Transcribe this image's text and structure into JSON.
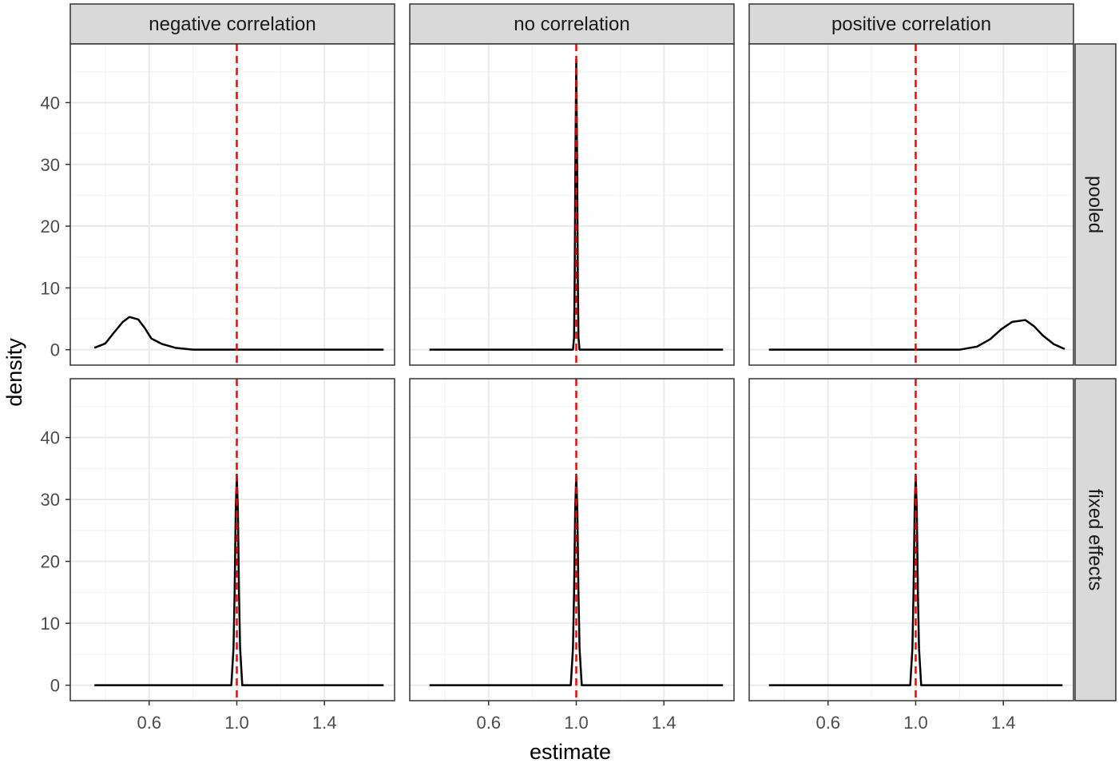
{
  "chart_data": {
    "type": "line",
    "chart_kind": "faceted density plot",
    "xlabel": "estimate",
    "ylabel": "density",
    "xlim": [
      0.24,
      1.72
    ],
    "ylim": [
      -2.5,
      49.5
    ],
    "x_ticks": [
      {
        "value": 0.6,
        "label": "0.6"
      },
      {
        "value": 1.0,
        "label": "1.0"
      },
      {
        "value": 1.4,
        "label": "1.4"
      }
    ],
    "y_ticks": [
      {
        "value": 0,
        "label": "0"
      },
      {
        "value": 10,
        "label": "10"
      },
      {
        "value": 20,
        "label": "20"
      },
      {
        "value": 30,
        "label": "30"
      },
      {
        "value": 40,
        "label": "40"
      }
    ],
    "grid": true,
    "reference_line": {
      "x": 1.0,
      "color": "#ff0000",
      "style": "dashed"
    },
    "line_color": "#000000",
    "columns": [
      "negative correlation",
      "no correlation",
      "positive correlation"
    ],
    "rows": [
      "pooled",
      "fixed effects"
    ],
    "panels": [
      {
        "column": "negative correlation",
        "row": "pooled",
        "points": [
          [
            0.35,
            0.3
          ],
          [
            0.4,
            1.0
          ],
          [
            0.44,
            2.8
          ],
          [
            0.48,
            4.5
          ],
          [
            0.51,
            5.3
          ],
          [
            0.55,
            4.9
          ],
          [
            0.58,
            3.5
          ],
          [
            0.61,
            1.8
          ],
          [
            0.66,
            0.9
          ],
          [
            0.72,
            0.3
          ],
          [
            0.8,
            0.0
          ],
          [
            1.67,
            0.0
          ]
        ]
      },
      {
        "column": "no correlation",
        "row": "pooled",
        "points": [
          [
            0.33,
            0.0
          ],
          [
            0.985,
            0.0
          ],
          [
            0.99,
            2.0
          ],
          [
            0.993,
            12.0
          ],
          [
            0.996,
            30.0
          ],
          [
            1.0,
            47.0
          ],
          [
            1.004,
            30.0
          ],
          [
            1.007,
            12.0
          ],
          [
            1.01,
            2.0
          ],
          [
            1.015,
            0.0
          ],
          [
            1.67,
            0.0
          ]
        ]
      },
      {
        "column": "positive correlation",
        "row": "pooled",
        "points": [
          [
            0.33,
            0.0
          ],
          [
            1.2,
            0.0
          ],
          [
            1.28,
            0.5
          ],
          [
            1.34,
            1.7
          ],
          [
            1.39,
            3.3
          ],
          [
            1.44,
            4.5
          ],
          [
            1.5,
            4.8
          ],
          [
            1.54,
            3.8
          ],
          [
            1.58,
            2.3
          ],
          [
            1.63,
            0.9
          ],
          [
            1.68,
            0.1
          ]
        ]
      },
      {
        "column": "negative correlation",
        "row": "fixed effects",
        "points": [
          [
            0.35,
            0.0
          ],
          [
            0.975,
            0.0
          ],
          [
            0.985,
            6.0
          ],
          [
            0.99,
            15.0
          ],
          [
            0.995,
            28.0
          ],
          [
            1.0,
            34.0
          ],
          [
            1.005,
            28.0
          ],
          [
            1.01,
            15.0
          ],
          [
            1.015,
            6.0
          ],
          [
            1.025,
            0.0
          ],
          [
            1.67,
            0.0
          ]
        ]
      },
      {
        "column": "no correlation",
        "row": "fixed effects",
        "points": [
          [
            0.33,
            0.0
          ],
          [
            0.975,
            0.0
          ],
          [
            0.985,
            6.0
          ],
          [
            0.99,
            15.0
          ],
          [
            0.995,
            28.0
          ],
          [
            1.0,
            34.0
          ],
          [
            1.005,
            28.0
          ],
          [
            1.01,
            15.0
          ],
          [
            1.015,
            6.0
          ],
          [
            1.025,
            0.0
          ],
          [
            1.67,
            0.0
          ]
        ]
      },
      {
        "column": "positive correlation",
        "row": "fixed effects",
        "points": [
          [
            0.33,
            0.0
          ],
          [
            0.975,
            0.0
          ],
          [
            0.985,
            6.0
          ],
          [
            0.99,
            15.0
          ],
          [
            0.995,
            28.0
          ],
          [
            1.0,
            34.0
          ],
          [
            1.005,
            28.0
          ],
          [
            1.01,
            15.0
          ],
          [
            1.015,
            6.0
          ],
          [
            1.025,
            0.0
          ],
          [
            1.67,
            0.0
          ]
        ]
      }
    ]
  }
}
